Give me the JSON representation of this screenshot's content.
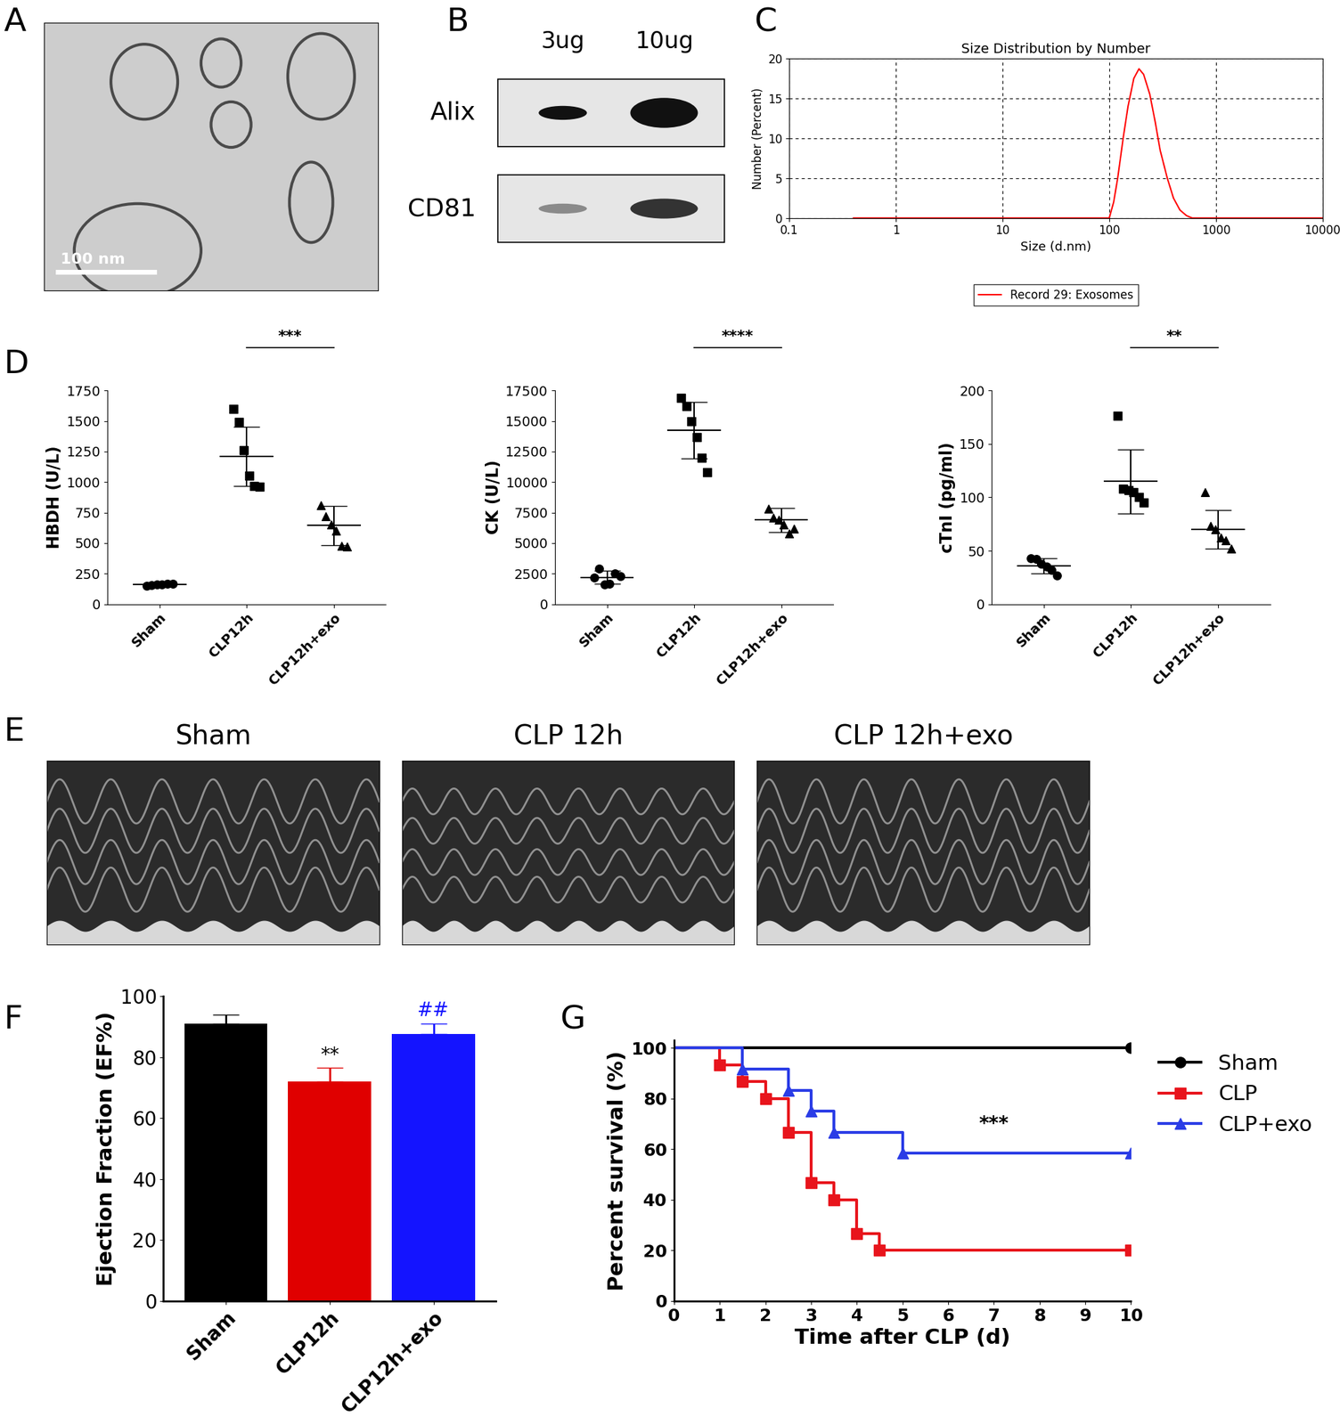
{
  "chart_data": [
    {
      "type": "image",
      "panel": "A",
      "annotations": [
        "100 nm"
      ]
    },
    {
      "type": "blot",
      "panel": "B",
      "columns": [
        "3ug",
        "10ug"
      ],
      "rows": [
        "Alix",
        "CD81"
      ]
    },
    {
      "type": "line",
      "panel": "C",
      "title": "Size Distribution by Number",
      "x_label": "Size (d.nm)",
      "y_label": "Number (Percent)",
      "log": "x",
      "xlim": [
        0.1,
        10000
      ],
      "xticks": [
        0.1,
        1,
        10,
        100,
        1000,
        10000
      ],
      "ylim": [
        0,
        20
      ],
      "yticks": [
        0,
        5,
        10,
        15,
        20
      ],
      "grid": true,
      "legend": "upper center",
      "series": [
        {
          "name": "Record 29: Exosomes",
          "color": "#ff0000",
          "x": [
            0.4,
            100,
            110,
            120,
            135,
            150,
            170,
            190,
            210,
            240,
            270,
            300,
            350,
            400,
            460,
            530,
            600,
            10000
          ],
          "values": [
            0,
            0,
            2,
            5,
            10,
            14,
            17.5,
            18.7,
            18,
            15.5,
            12,
            8.5,
            5,
            2.5,
            1,
            0.3,
            0,
            0
          ]
        }
      ]
    },
    {
      "type": "dot",
      "panel": "D",
      "y_label": "HBDH (U/L)",
      "categories": [
        "Sham",
        "CLP12h",
        "CLP12h+exo"
      ],
      "values": [
        [
          150,
          155,
          160,
          160,
          165,
          170
        ],
        [
          1600,
          1490,
          1260,
          1050,
          970,
          960
        ],
        [
          810,
          720,
          650,
          600,
          480,
          470
        ]
      ],
      "mean": [
        160,
        1210,
        645
      ],
      "sd": [
        12,
        245,
        160
      ],
      "marker": [
        "circle",
        "square",
        "triangle"
      ],
      "color": "#000000",
      "ylim": [
        0,
        1750
      ],
      "yticks": [
        0,
        250,
        500,
        750,
        1000,
        1250,
        1500,
        1750
      ],
      "significance": {
        "text": "***",
        "groups": [
          "CLP12h",
          "CLP12h+exo"
        ]
      }
    },
    {
      "type": "dot",
      "y_label": "CK (U/L)",
      "categories": [
        "Sham",
        "CLP12h",
        "CLP12h+exo"
      ],
      "values": [
        [
          2200,
          2900,
          1600,
          1700,
          2500,
          2300
        ],
        [
          16900,
          16200,
          15000,
          13700,
          12000,
          10800
        ],
        [
          7800,
          7100,
          6900,
          6500,
          5800,
          6200
        ]
      ],
      "mean": [
        2200,
        14250,
        6900
      ],
      "sd": [
        550,
        2300,
        1000
      ],
      "marker": [
        "circle",
        "square",
        "triangle"
      ],
      "color": "#000000",
      "ylim": [
        0,
        17500
      ],
      "yticks": [
        0,
        2500,
        5000,
        7500,
        10000,
        12500,
        15000,
        17500
      ],
      "significance": {
        "text": "****",
        "groups": [
          "CLP12h",
          "CLP12h+exo"
        ]
      }
    },
    {
      "type": "dot",
      "y_label": "cTnI (pg/ml)",
      "categories": [
        "Sham",
        "CLP12h",
        "CLP12h+exo"
      ],
      "values": [
        [
          43,
          42,
          38,
          35,
          32,
          27
        ],
        [
          176,
          108,
          107,
          105,
          100,
          95
        ],
        [
          105,
          73,
          70,
          62,
          60,
          52
        ]
      ],
      "mean": [
        36,
        115,
        70
      ],
      "sd": [
        7,
        30,
        18
      ],
      "marker": [
        "circle",
        "square",
        "triangle"
      ],
      "color": "#000000",
      "ylim": [
        0,
        200
      ],
      "yticks": [
        0,
        50,
        100,
        150,
        200
      ],
      "significance": {
        "text": "**",
        "groups": [
          "CLP12h",
          "CLP12h+exo"
        ]
      }
    },
    {
      "type": "image",
      "panel": "E",
      "titles": [
        "Sham",
        "CLP 12h",
        "CLP 12h+exo"
      ]
    },
    {
      "type": "bar",
      "panel": "F",
      "y_label": "Ejection Fraction (EF%)",
      "categories": [
        "Sham",
        "CLP12h",
        "CLP12h+exo"
      ],
      "values": [
        91,
        72,
        87.5
      ],
      "sd": [
        3,
        4.5,
        3.5
      ],
      "colors": [
        "#000000",
        "#e00000",
        "#1414ff"
      ],
      "significance": [
        null,
        "**",
        "##"
      ],
      "ylim": [
        0,
        100
      ],
      "yticks": [
        0,
        20,
        40,
        60,
        80,
        100
      ]
    },
    {
      "type": "line",
      "panel": "G",
      "x_label": "Time after CLP (d)",
      "y_label": "Percent survival (%)",
      "xlim": [
        0,
        10
      ],
      "xticks": [
        0,
        1,
        2,
        3,
        4,
        5,
        6,
        7,
        8,
        9,
        10
      ],
      "ylim": [
        0,
        103
      ],
      "yticks": [
        0,
        20,
        40,
        60,
        80,
        100
      ],
      "legend": "upper left",
      "line_style": "steps",
      "series": [
        {
          "name": "Sham",
          "color": "#000000",
          "marker": "circle",
          "x": [
            0,
            10
          ],
          "values": [
            100,
            100
          ]
        },
        {
          "name": "CLP",
          "color": "#e8141c",
          "marker": "square",
          "x": [
            0,
            1,
            1.5,
            2,
            2.5,
            3,
            3.5,
            4,
            4.5,
            10
          ],
          "values": [
            100,
            93.3,
            86.7,
            80,
            66.7,
            46.7,
            40,
            26.7,
            20,
            20
          ]
        },
        {
          "name": "CLP+exo",
          "color": "#2a3ce6",
          "marker": "triangle",
          "x": [
            0,
            1.5,
            2.5,
            3,
            3.5,
            5,
            10
          ],
          "values": [
            100,
            91.7,
            83.3,
            75,
            66.7,
            58.3,
            58.3
          ]
        }
      ],
      "annotations": [
        {
          "text": "***",
          "x": 7,
          "y": 66
        }
      ]
    }
  ]
}
